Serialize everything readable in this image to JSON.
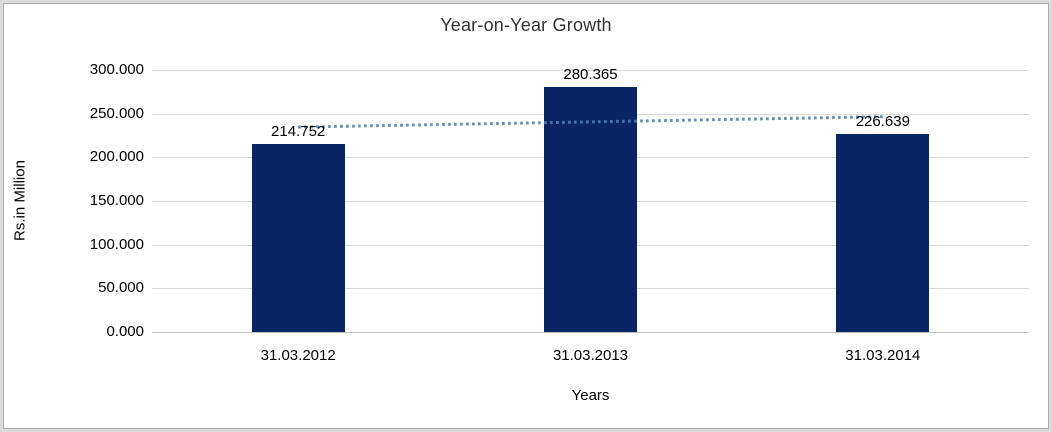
{
  "chart_data": {
    "type": "bar",
    "title": "Year-on-Year Growth",
    "xlabel": "Years",
    "ylabel": "Rs.in Million",
    "categories": [
      "31.03.2012",
      "31.03.2013",
      "31.03.2014"
    ],
    "values": [
      214.752,
      280.365,
      226.639
    ],
    "value_labels": [
      "214.752",
      "280.365",
      "226.639"
    ],
    "ylim": [
      0,
      300
    ],
    "ytick_step": 50,
    "ytick_labels": [
      "0.000",
      "50.000",
      "100.000",
      "150.000",
      "200.000",
      "250.000",
      "300.000"
    ],
    "grid": true,
    "legend": "none",
    "bar_color": "#0A2564",
    "trendline": {
      "type": "linear",
      "style": "dotted",
      "color": "#4F81BD"
    },
    "gridline_color": "#D9D9D9",
    "axis_line_color": "#C3C3C3",
    "title_color": "#333333",
    "label_color": "#000000",
    "frame_color": "#DCDCDC"
  }
}
